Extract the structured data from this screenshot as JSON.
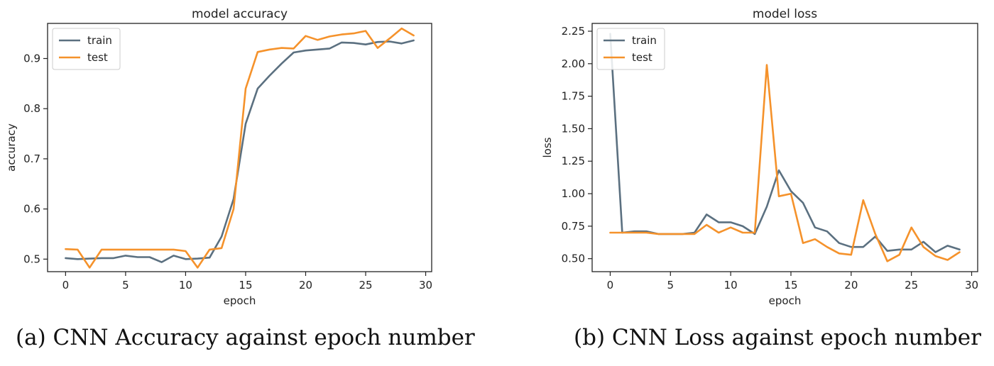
{
  "chart_data": [
    {
      "type": "line",
      "title": "model accuracy",
      "xlabel": "epoch",
      "ylabel": "accuracy",
      "xlim": [
        -1.5,
        30.5
      ],
      "ylim": [
        0.475,
        0.97
      ],
      "xticks": [
        0,
        5,
        10,
        15,
        20,
        25,
        30
      ],
      "yticks": [
        0.5,
        0.6,
        0.7,
        0.8,
        0.9
      ],
      "ytick_labels": [
        "0.5",
        "0.6",
        "0.7",
        "0.8",
        "0.9"
      ],
      "legend": "top-left",
      "x": [
        0,
        1,
        2,
        3,
        4,
        5,
        6,
        7,
        8,
        9,
        10,
        11,
        12,
        13,
        14,
        15,
        16,
        17,
        18,
        19,
        20,
        21,
        22,
        23,
        24,
        25,
        26,
        27,
        28,
        29
      ],
      "series": [
        {
          "name": "train",
          "color": "#5b7080",
          "values": [
            0.502,
            0.5,
            0.501,
            0.502,
            0.502,
            0.507,
            0.504,
            0.504,
            0.494,
            0.507,
            0.5,
            0.501,
            0.503,
            0.545,
            0.62,
            0.77,
            0.84,
            0.866,
            0.89,
            0.912,
            0.916,
            0.918,
            0.92,
            0.932,
            0.931,
            0.928,
            0.933,
            0.934,
            0.93,
            0.936
          ]
        },
        {
          "name": "test",
          "color": "#f5922b",
          "values": [
            0.52,
            0.519,
            0.483,
            0.519,
            0.519,
            0.519,
            0.519,
            0.519,
            0.519,
            0.519,
            0.516,
            0.483,
            0.519,
            0.522,
            0.6,
            0.84,
            0.913,
            0.918,
            0.921,
            0.92,
            0.945,
            0.937,
            0.944,
            0.948,
            0.95,
            0.955,
            0.921,
            0.94,
            0.96,
            0.946
          ]
        }
      ]
    },
    {
      "type": "line",
      "title": "model loss",
      "xlabel": "epoch",
      "ylabel": "loss",
      "xlim": [
        -1.5,
        30.5
      ],
      "ylim": [
        0.4,
        2.31
      ],
      "xticks": [
        0,
        5,
        10,
        15,
        20,
        25,
        30
      ],
      "yticks": [
        0.5,
        0.75,
        1.0,
        1.25,
        1.5,
        1.75,
        2.0,
        2.25
      ],
      "ytick_labels": [
        "0.50",
        "0.75",
        "1.00",
        "1.25",
        "1.50",
        "1.75",
        "2.00",
        "2.25"
      ],
      "legend": "top-left",
      "x": [
        0,
        1,
        2,
        3,
        4,
        5,
        6,
        7,
        8,
        9,
        10,
        11,
        12,
        13,
        14,
        15,
        16,
        17,
        18,
        19,
        20,
        21,
        22,
        23,
        24,
        25,
        26,
        27,
        28,
        29
      ],
      "series": [
        {
          "name": "train",
          "color": "#5b7080",
          "values": [
            2.23,
            0.7,
            0.71,
            0.71,
            0.69,
            0.69,
            0.69,
            0.7,
            0.84,
            0.78,
            0.78,
            0.75,
            0.69,
            0.9,
            1.18,
            1.02,
            0.93,
            0.74,
            0.71,
            0.62,
            0.59,
            0.59,
            0.67,
            0.56,
            0.57,
            0.57,
            0.63,
            0.55,
            0.6,
            0.57
          ]
        },
        {
          "name": "test",
          "color": "#f5922b",
          "values": [
            0.7,
            0.7,
            0.7,
            0.7,
            0.69,
            0.69,
            0.69,
            0.69,
            0.76,
            0.7,
            0.74,
            0.7,
            0.7,
            1.99,
            0.98,
            1.0,
            0.62,
            0.65,
            0.59,
            0.54,
            0.53,
            0.95,
            0.69,
            0.48,
            0.53,
            0.74,
            0.59,
            0.52,
            0.49,
            0.55
          ]
        }
      ]
    }
  ],
  "captions": {
    "a": "(a) CNN Accuracy against epoch number",
    "b": "(b) CNN Loss against epoch number"
  }
}
